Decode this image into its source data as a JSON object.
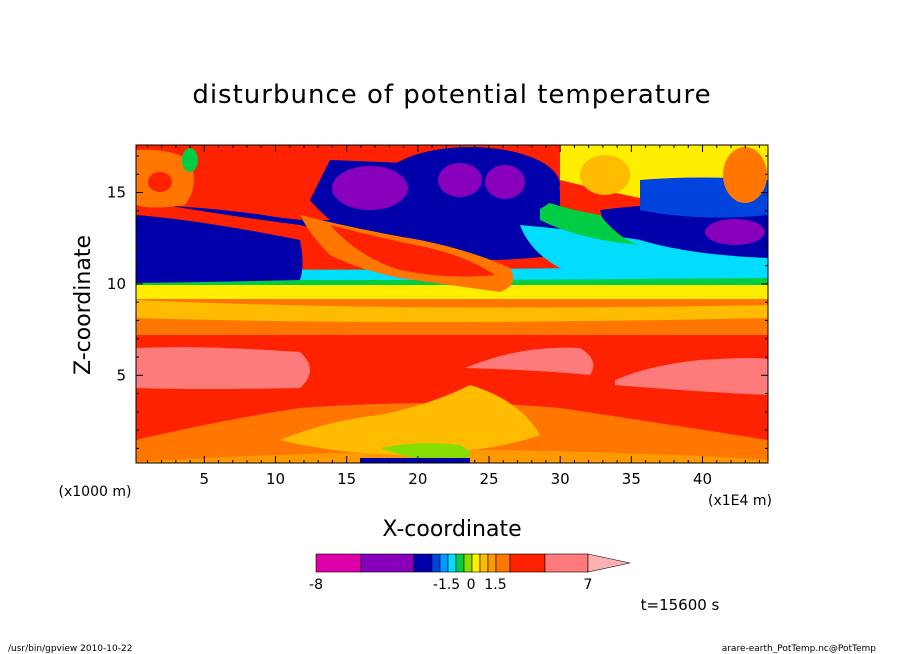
{
  "chart_data": {
    "type": "heatmap",
    "title": "disturbunce of potential temperature",
    "xlabel": "X-coordinate",
    "ylabel": "Z-coordinate",
    "x_multiplier": "(x1E4 m)",
    "y_multiplier": "(x1000 m)",
    "xlim": [
      0.2,
      44.6
    ],
    "ylim": [
      0.2,
      17.6
    ],
    "x_ticks": [
      5,
      10,
      15,
      20,
      25,
      30,
      35,
      40
    ],
    "y_ticks": [
      5,
      10,
      15
    ],
    "colorbar": {
      "colors": [
        "#dd00aa",
        "#8800bb",
        "#0000aa",
        "#0044dd",
        "#0099ff",
        "#00ddff",
        "#00cc44",
        "#88dd00",
        "#ffee00",
        "#ffbb00",
        "#ff9900",
        "#ff7700",
        "#ff2200",
        "#ff7a7a",
        "#ffb0b0"
      ],
      "labels": [
        "-8",
        "-1.5",
        "0",
        "1.5",
        "7"
      ],
      "label_positions": [
        0,
        0.48,
        0.57,
        0.66,
        1
      ]
    },
    "regions": [
      {
        "z_range": [
          0.2,
          1.2
        ],
        "value": "orange (~3)"
      },
      {
        "z_range": [
          1.2,
          3.8
        ],
        "value": "red (~5)"
      },
      {
        "z_range": [
          3.8,
          6.6
        ],
        "value": "pink (>7)"
      },
      {
        "z_range": [
          6.6,
          8.5
        ],
        "value": "red/orange (~4)"
      },
      {
        "z_range": [
          9.5,
          13.5
        ],
        "value": "blue (~-3)"
      },
      {
        "z_range": [
          14,
          17
        ],
        "value": "mixed blue/purple (<-5) and orange"
      }
    ]
  },
  "annotations": {
    "time": "t=15600 s",
    "footer_left": "/usr/bin/gpview   2010-10-22",
    "footer_right": "arare-earth_PotTemp.nc@PotTemp"
  }
}
